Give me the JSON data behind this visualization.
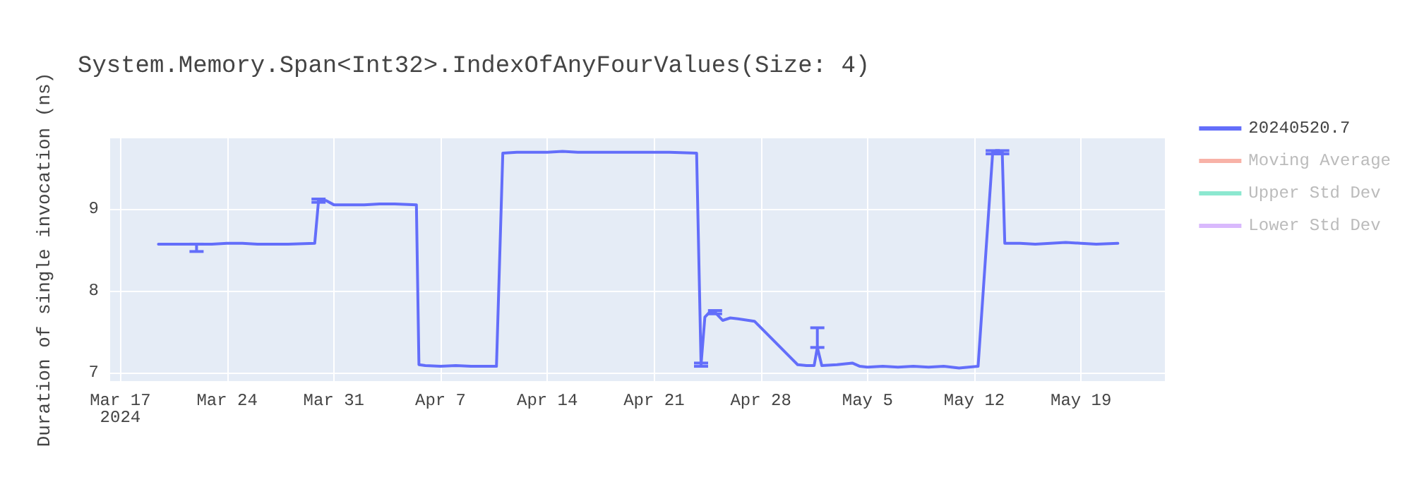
{
  "chart_data": {
    "type": "line",
    "title": "System.Memory.Span<Int32>.IndexOfAnyFourValues(Size: 4)",
    "ylabel": "Duration of single invocation (ns)",
    "x": [
      "2024-03-19T12:00",
      "2024-03-20",
      "2024-03-21",
      "2024-03-22",
      "2024-03-23",
      "2024-03-24",
      "2024-03-25",
      "2024-03-26",
      "2024-03-27",
      "2024-03-28",
      "2024-03-29T18:00",
      "2024-03-30",
      "2024-03-30T12:00",
      "2024-03-31",
      "2024-04-01",
      "2024-04-02",
      "2024-04-03",
      "2024-04-04",
      "2024-04-05T10:00",
      "2024-04-05T14:00",
      "2024-04-06",
      "2024-04-07",
      "2024-04-08",
      "2024-04-09",
      "2024-04-10T16:00",
      "2024-04-11T02:00",
      "2024-04-12",
      "2024-04-13",
      "2024-04-14",
      "2024-04-15",
      "2024-04-16",
      "2024-04-17",
      "2024-04-18",
      "2024-04-19",
      "2024-04-20",
      "2024-04-21",
      "2024-04-22",
      "2024-04-23T19:00",
      "2024-04-24T02:00",
      "2024-04-24T08:00",
      "2024-04-24T14:00",
      "2024-04-25",
      "2024-04-25T12:00",
      "2024-04-26",
      "2024-04-26T12:00",
      "2024-04-27T14:00",
      "2024-04-30T10:00",
      "2024-05-01",
      "2024-05-01T12:00",
      "2024-05-01T17:00",
      "2024-05-02",
      "2024-05-03",
      "2024-05-04",
      "2024-05-04T12:00",
      "2024-05-05",
      "2024-05-06",
      "2024-05-07",
      "2024-05-08",
      "2024-05-09",
      "2024-05-10",
      "2024-05-11",
      "2024-05-12T06:00",
      "2024-05-13T05:00",
      "2024-05-13T20:00",
      "2024-05-14",
      "2024-05-15",
      "2024-05-16",
      "2024-05-17",
      "2024-05-18",
      "2024-05-19",
      "2024-05-20",
      "2024-05-21T10:00"
    ],
    "series": [
      {
        "name": "20240520.7",
        "color": "#636efa",
        "values": [
          8.57,
          8.57,
          8.57,
          8.57,
          8.57,
          8.58,
          8.58,
          8.57,
          8.57,
          8.57,
          8.58,
          9.1,
          9.1,
          9.05,
          9.05,
          9.05,
          9.06,
          9.06,
          9.05,
          7.1,
          7.09,
          7.08,
          7.09,
          7.08,
          7.08,
          9.68,
          9.69,
          9.69,
          9.69,
          9.7,
          9.69,
          9.69,
          9.69,
          9.69,
          9.69,
          9.69,
          9.69,
          9.68,
          7.1,
          7.68,
          7.73,
          7.74,
          7.64,
          7.67,
          7.66,
          7.63,
          7.1,
          7.09,
          7.09,
          7.31,
          7.09,
          7.1,
          7.12,
          7.08,
          7.07,
          7.08,
          7.07,
          7.08,
          7.07,
          7.08,
          7.06,
          7.08,
          9.69,
          9.69,
          8.58,
          8.58,
          8.57,
          8.58,
          8.59,
          8.58,
          8.57,
          8.58
        ],
        "errors": [
          null,
          null,
          null,
          [
            8.48,
            8.57
          ],
          null,
          null,
          null,
          null,
          null,
          null,
          null,
          0.02,
          null,
          null,
          null,
          null,
          null,
          null,
          null,
          null,
          null,
          null,
          null,
          null,
          null,
          null,
          null,
          null,
          null,
          null,
          null,
          null,
          null,
          null,
          null,
          null,
          null,
          null,
          0.02,
          null,
          null,
          0.02,
          null,
          null,
          null,
          null,
          null,
          null,
          null,
          [
            7.31,
            7.55
          ],
          null,
          null,
          null,
          null,
          null,
          null,
          null,
          null,
          null,
          null,
          null,
          null,
          0.02,
          0.02,
          null,
          null,
          null,
          null,
          null,
          null,
          null,
          null
        ]
      },
      {
        "name": "Moving Average",
        "color": "#ef553b",
        "values": [
          null,
          null,
          null,
          null,
          null,
          null,
          null,
          null,
          null,
          null,
          null,
          null,
          null,
          null,
          null,
          null,
          null,
          null,
          null,
          null,
          null,
          null,
          null,
          null,
          null,
          null,
          null,
          null,
          null,
          null,
          null,
          null,
          null,
          null,
          null,
          null,
          null,
          null,
          null,
          null,
          null,
          null,
          null,
          null,
          null,
          null,
          null,
          null,
          null,
          null,
          null,
          null,
          null,
          null,
          null,
          null,
          null,
          null,
          null,
          null,
          null,
          null,
          null,
          null,
          null,
          null,
          null,
          null,
          null,
          null,
          null,
          null
        ]
      },
      {
        "name": "Upper Std Dev",
        "color": "#00cc96",
        "values": [
          null,
          null,
          null,
          null,
          null,
          null,
          null,
          null,
          null,
          null,
          null,
          null,
          null,
          null,
          null,
          null,
          null,
          null,
          null,
          null,
          null,
          null,
          null,
          null,
          null,
          null,
          null,
          null,
          null,
          null,
          null,
          null,
          null,
          null,
          null,
          null,
          null,
          null,
          null,
          null,
          null,
          null,
          null,
          null,
          null,
          null,
          null,
          null,
          null,
          null,
          null,
          null,
          null,
          null,
          null,
          null,
          null,
          null,
          null,
          null,
          null,
          null,
          null,
          null,
          null,
          null,
          null,
          null,
          null,
          null,
          null,
          null
        ]
      },
      {
        "name": "Lower Std Dev",
        "color": "#ab63fa",
        "values": [
          null,
          null,
          null,
          null,
          null,
          null,
          null,
          null,
          null,
          null,
          null,
          null,
          null,
          null,
          null,
          null,
          null,
          null,
          null,
          null,
          null,
          null,
          null,
          null,
          null,
          null,
          null,
          null,
          null,
          null,
          null,
          null,
          null,
          null,
          null,
          null,
          null,
          null,
          null,
          null,
          null,
          null,
          null,
          null,
          null,
          null,
          null,
          null,
          null,
          null,
          null,
          null,
          null,
          null,
          null,
          null,
          null,
          null,
          null,
          null,
          null,
          null,
          null,
          null,
          null,
          null,
          null,
          null,
          null,
          null,
          null,
          null
        ]
      }
    ],
    "xlim": [
      "2024-03-16T08:00",
      "2024-05-24T12:00"
    ],
    "xticks": [
      {
        "value": "2024-03-17",
        "label": "Mar 17\n2024"
      },
      {
        "value": "2024-03-24",
        "label": "Mar 24"
      },
      {
        "value": "2024-03-31",
        "label": "Mar 31"
      },
      {
        "value": "2024-04-07",
        "label": "Apr 7"
      },
      {
        "value": "2024-04-14",
        "label": "Apr 14"
      },
      {
        "value": "2024-04-21",
        "label": "Apr 21"
      },
      {
        "value": "2024-04-28",
        "label": "Apr 28"
      },
      {
        "value": "2024-05-05",
        "label": "May 5"
      },
      {
        "value": "2024-05-12",
        "label": "May 12"
      },
      {
        "value": "2024-05-19",
        "label": "May 19"
      }
    ],
    "ylim": [
      6.9,
      9.86
    ],
    "yticks": [
      7,
      8,
      9
    ],
    "grid": true,
    "legend": "right",
    "marker": "none",
    "line_style": "solid"
  }
}
